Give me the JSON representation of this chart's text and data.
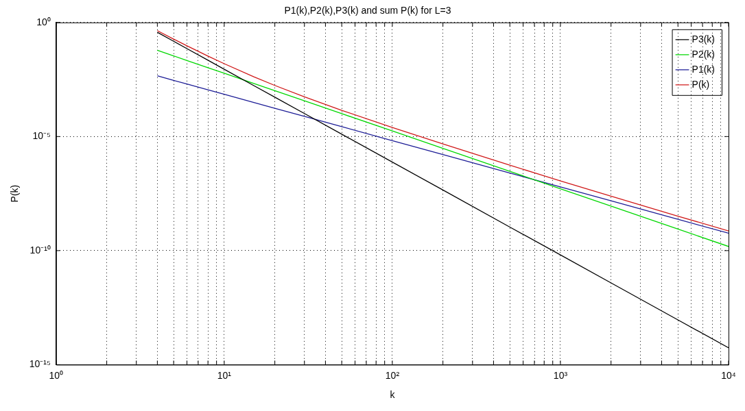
{
  "chart_data": {
    "type": "line",
    "title": "P1(k),P2(k),P3(k) and sum P(k) for L=3",
    "xlabel": "k",
    "ylabel": "P(k)",
    "log": "xy",
    "grid": true,
    "legend": "top right",
    "x": [
      4,
      5,
      6,
      8,
      10,
      15,
      20,
      30,
      50,
      100,
      200,
      500,
      1000,
      2000,
      5000,
      10000
    ],
    "xlim": [
      1,
      10000
    ],
    "ylim": [
      1e-15,
      1
    ],
    "xticks": [
      {
        "value": 1,
        "label": "10⁰"
      },
      {
        "value": 2,
        "label": null
      },
      {
        "value": 3,
        "label": null
      },
      {
        "value": 4,
        "label": null
      },
      {
        "value": 5,
        "label": null
      },
      {
        "value": 6,
        "label": null
      },
      {
        "value": 7,
        "label": null
      },
      {
        "value": 8,
        "label": null
      },
      {
        "value": 9,
        "label": null
      },
      {
        "value": 10,
        "label": "10¹"
      },
      {
        "value": 20,
        "label": null
      },
      {
        "value": 30,
        "label": null
      },
      {
        "value": 40,
        "label": null
      },
      {
        "value": 50,
        "label": null
      },
      {
        "value": 60,
        "label": null
      },
      {
        "value": 70,
        "label": null
      },
      {
        "value": 80,
        "label": null
      },
      {
        "value": 90,
        "label": null
      },
      {
        "value": 100,
        "label": "10²"
      },
      {
        "value": 200,
        "label": null
      },
      {
        "value": 300,
        "label": null
      },
      {
        "value": 400,
        "label": null
      },
      {
        "value": 500,
        "label": null
      },
      {
        "value": 600,
        "label": null
      },
      {
        "value": 700,
        "label": null
      },
      {
        "value": 800,
        "label": null
      },
      {
        "value": 900,
        "label": null
      },
      {
        "value": 1000,
        "label": "10³"
      },
      {
        "value": 2000,
        "label": null
      },
      {
        "value": 3000,
        "label": null
      },
      {
        "value": 4000,
        "label": null
      },
      {
        "value": 5000,
        "label": null
      },
      {
        "value": 6000,
        "label": null
      },
      {
        "value": 7000,
        "label": null
      },
      {
        "value": 8000,
        "label": null
      },
      {
        "value": 9000,
        "label": null
      },
      {
        "value": 10000,
        "label": "10⁴"
      }
    ],
    "yticks": [
      {
        "value": 1e-15,
        "label": "10⁻¹⁵"
      },
      {
        "value": 1e-10,
        "label": "10⁻¹⁰"
      },
      {
        "value": 1e-05,
        "label": "10⁻⁵"
      },
      {
        "value": 1,
        "label": "10⁰"
      }
    ],
    "series": [
      {
        "name": "P3(k)",
        "color": "#000000",
        "values": [
          0.372,
          0.15,
          0.0715,
          0.0221,
          0.00891,
          0.00171,
          0.000531,
          0.000102,
          1.27e-05,
          7.59e-07,
          4.52e-08,
          1.08e-09,
          6.46e-11,
          3.85e-12,
          9.23e-14,
          5.5e-15
        ]
      },
      {
        "name": "P2(k)",
        "color": "#00d800",
        "values": [
          0.0603,
          0.0343,
          0.0216,
          0.0104,
          0.00593,
          0.00213,
          0.00103,
          0.000368,
          0.000101,
          1.75e-05,
          3.03e-06,
          2.99e-07,
          5.16e-08,
          8.95e-09,
          8.81e-10,
          1.52e-10
        ]
      },
      {
        "name": "P1(k)",
        "color": "#1c1c96",
        "values": [
          0.00457,
          0.0029,
          0.00201,
          0.00112,
          0.000711,
          0.000313,
          0.000174,
          7.66e-05,
          2.71e-05,
          6.64e-06,
          1.63e-06,
          2.53e-07,
          6.19e-08,
          1.52e-08,
          2.36e-09,
          5.78e-10
        ]
      },
      {
        "name": "P(k)",
        "color": "#d01818",
        "values": [
          0.437,
          0.187,
          0.0951,
          0.0336,
          0.0156,
          0.00415,
          0.001735,
          0.000547,
          0.000141,
          2.49e-05,
          4.71e-06,
          5.53e-07,
          1.14e-07,
          2.42e-08,
          3.24e-09,
          7.3e-10
        ]
      }
    ]
  }
}
